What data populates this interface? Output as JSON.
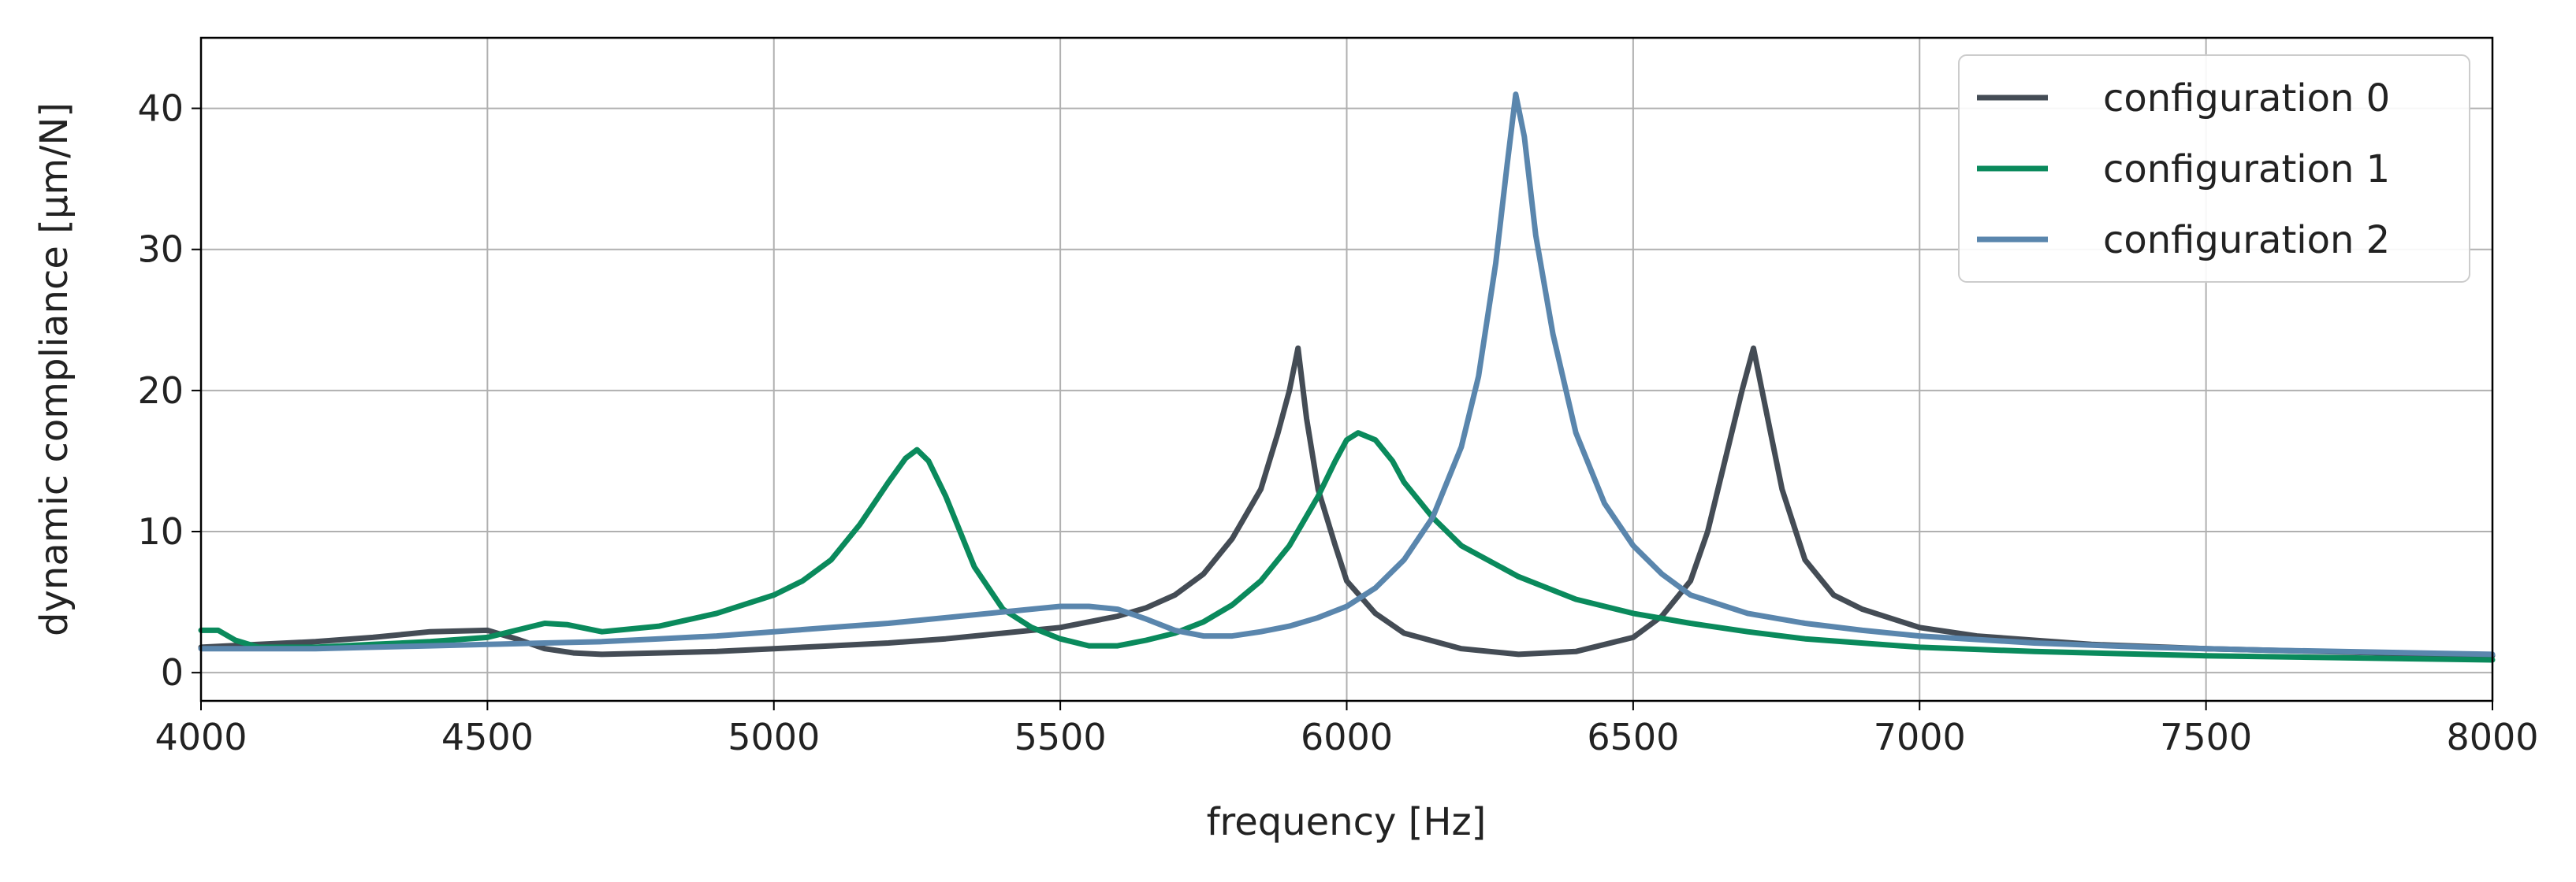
{
  "chart_data": {
    "type": "line",
    "title": "",
    "xlabel": "frequency [Hz]",
    "ylabel": "dynamic compliance [µm/N]",
    "xlim": [
      4000,
      8000
    ],
    "ylim": [
      -2,
      45
    ],
    "xticks": [
      "4000",
      "4500",
      "5000",
      "5500",
      "6000",
      "6500",
      "7000",
      "7500",
      "8000"
    ],
    "yticks": [
      "0",
      "10",
      "20",
      "30",
      "40"
    ],
    "grid": true,
    "legend_position": "top-right",
    "series": [
      {
        "name": "configuration 0",
        "color": "#444c55",
        "x": [
          4000,
          4100,
          4200,
          4300,
          4400,
          4500,
          4550,
          4600,
          4650,
          4700,
          4800,
          4900,
          5000,
          5100,
          5200,
          5300,
          5400,
          5500,
          5600,
          5650,
          5700,
          5750,
          5800,
          5850,
          5880,
          5900,
          5915,
          5930,
          5950,
          5980,
          6000,
          6050,
          6100,
          6200,
          6300,
          6400,
          6500,
          6550,
          6600,
          6630,
          6660,
          6690,
          6710,
          6730,
          6760,
          6800,
          6850,
          6900,
          7000,
          7100,
          7200,
          7300,
          7500,
          7700,
          8000
        ],
        "y": [
          1.8,
          2.0,
          2.2,
          2.5,
          2.9,
          3.0,
          2.4,
          1.7,
          1.4,
          1.3,
          1.4,
          1.5,
          1.7,
          1.9,
          2.1,
          2.4,
          2.8,
          3.2,
          4.0,
          4.6,
          5.5,
          7.0,
          9.5,
          13.0,
          17.0,
          20.0,
          23.0,
          18.0,
          13.0,
          9.0,
          6.5,
          4.2,
          2.8,
          1.7,
          1.3,
          1.5,
          2.5,
          4.0,
          6.5,
          10.0,
          15.0,
          20.0,
          23.0,
          19.0,
          13.0,
          8.0,
          5.5,
          4.5,
          3.2,
          2.6,
          2.3,
          2.0,
          1.7,
          1.5,
          1.2
        ]
      },
      {
        "name": "configuration 1",
        "color": "#0a8a5c",
        "x": [
          4000,
          4030,
          4060,
          4100,
          4200,
          4300,
          4400,
          4500,
          4550,
          4600,
          4640,
          4700,
          4800,
          4900,
          5000,
          5050,
          5100,
          5150,
          5200,
          5230,
          5250,
          5270,
          5300,
          5350,
          5400,
          5450,
          5500,
          5550,
          5600,
          5650,
          5700,
          5750,
          5800,
          5850,
          5900,
          5950,
          5980,
          6000,
          6020,
          6050,
          6080,
          6100,
          6150,
          6200,
          6300,
          6400,
          6500,
          6600,
          6700,
          6800,
          7000,
          7200,
          7500,
          8000
        ],
        "y": [
          3.0,
          3.0,
          2.3,
          1.8,
          1.8,
          2.0,
          2.2,
          2.5,
          3.0,
          3.5,
          3.4,
          2.9,
          3.3,
          4.2,
          5.5,
          6.5,
          8.0,
          10.5,
          13.5,
          15.2,
          15.8,
          15.0,
          12.5,
          7.5,
          4.5,
          3.2,
          2.4,
          1.9,
          1.9,
          2.3,
          2.8,
          3.6,
          4.8,
          6.5,
          9.0,
          12.5,
          15.0,
          16.5,
          17.0,
          16.5,
          15.0,
          13.5,
          11.0,
          9.0,
          6.8,
          5.2,
          4.2,
          3.5,
          2.9,
          2.4,
          1.8,
          1.5,
          1.2,
          0.9
        ]
      },
      {
        "name": "configuration 2",
        "color": "#5a86ad",
        "x": [
          4000,
          4100,
          4200,
          4300,
          4400,
          4500,
          4600,
          4700,
          4800,
          4900,
          5000,
          5100,
          5200,
          5300,
          5400,
          5500,
          5550,
          5600,
          5650,
          5700,
          5750,
          5800,
          5850,
          5900,
          5950,
          6000,
          6050,
          6100,
          6150,
          6200,
          6230,
          6260,
          6280,
          6295,
          6310,
          6330,
          6360,
          6400,
          6450,
          6500,
          6550,
          6600,
          6700,
          6800,
          6900,
          7000,
          7200,
          7400,
          7600,
          8000
        ],
        "y": [
          1.7,
          1.7,
          1.7,
          1.8,
          1.9,
          2.0,
          2.1,
          2.2,
          2.4,
          2.6,
          2.9,
          3.2,
          3.5,
          3.9,
          4.3,
          4.7,
          4.7,
          4.5,
          3.8,
          3.0,
          2.6,
          2.6,
          2.9,
          3.3,
          3.9,
          4.7,
          6.0,
          8.0,
          11.0,
          16.0,
          21.0,
          29.0,
          36.0,
          41.0,
          38.0,
          31.0,
          24.0,
          17.0,
          12.0,
          9.0,
          7.0,
          5.5,
          4.2,
          3.5,
          3.0,
          2.6,
          2.1,
          1.8,
          1.6,
          1.3
        ]
      }
    ]
  }
}
